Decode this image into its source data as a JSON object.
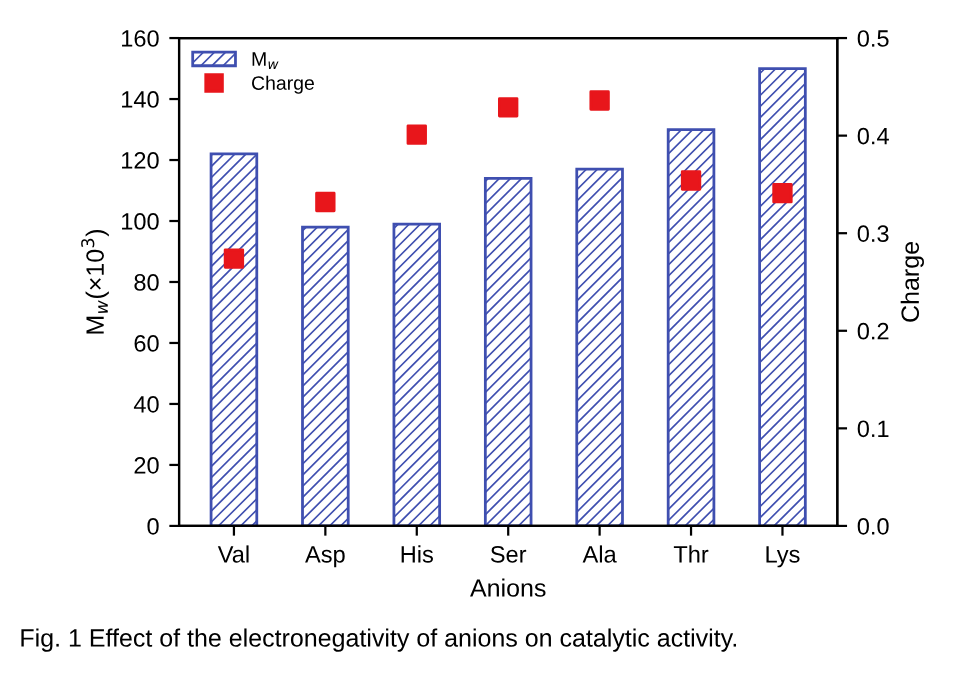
{
  "chart_data": {
    "type": "bar",
    "xlabel": "Anions",
    "ylabel": "M$_{w}$(×10$^{3}$)",
    "y2label": "Charge",
    "categories": [
      "Val",
      "Asp",
      "His",
      "Ser",
      "Ala",
      "Thr",
      "Lys"
    ],
    "series": [
      {
        "name": "M$_{w}$",
        "color": "#3f4fb0",
        "values": [
          122,
          98,
          99,
          114,
          117,
          130,
          150
        ]
      },
      {
        "name": "Charge",
        "type": "scatter",
        "axis": "y2",
        "color": "#e8161b",
        "marker": "square",
        "values": [
          0.274,
          0.332,
          0.401,
          0.429,
          0.436,
          0.354,
          0.341
        ]
      }
    ],
    "ylim": [
      0,
      160
    ],
    "yticks": [
      0,
      20,
      40,
      60,
      80,
      100,
      120,
      140,
      160
    ],
    "y2lim": [
      0.0,
      0.5
    ],
    "y2ticks": [
      {
        "value": 0.0,
        "label": "0.0"
      },
      0.1,
      0.2,
      0.3,
      0.4,
      0.5
    ],
    "legend": "top left",
    "grid": false,
    "annotations": [
      "Fig. 1 Effect of the electronegativity of anions on catalytic activity."
    ]
  }
}
